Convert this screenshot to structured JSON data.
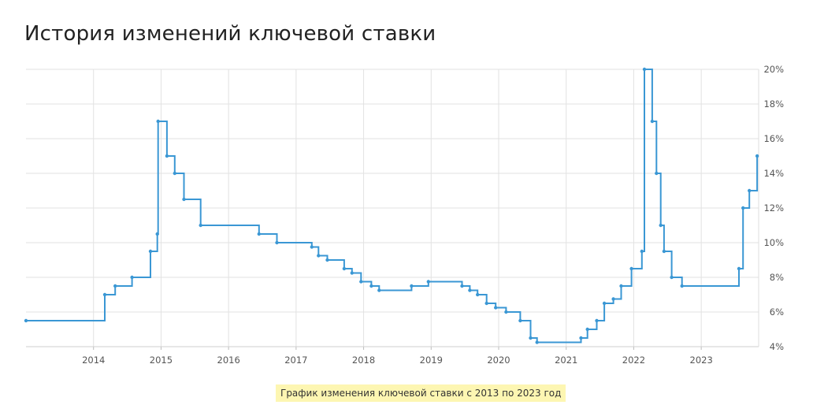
{
  "page": {
    "title": "История изменений ключевой ставки",
    "caption": "График изменения ключевой ставки с 2013 по 2023 год"
  },
  "chart_data": {
    "type": "line",
    "step": true,
    "title": "История изменений ключевой ставки",
    "xlabel": "",
    "ylabel": "",
    "xlim": [
      2013.0,
      2023.85
    ],
    "ylim": [
      4,
      20
    ],
    "x_ticks": [
      "2014",
      "2015",
      "2016",
      "2017",
      "2018",
      "2019",
      "2020",
      "2021",
      "2022",
      "2023"
    ],
    "y_ticks": [
      "4%",
      "6%",
      "8%",
      "10%",
      "12%",
      "14%",
      "16%",
      "18%",
      "20%"
    ],
    "y_axis_side": "right",
    "grid": true,
    "color": "#3a97d4",
    "series": [
      {
        "x": [
          "2013-01-01",
          "2014-03-03",
          "2014-04-28",
          "2014-07-28",
          "2014-11-05",
          "2014-12-12",
          "2014-12-16",
          "2015-02-02",
          "2015-03-16",
          "2015-05-05",
          "2015-08-03",
          "2016-06-14",
          "2016-09-19",
          "2017-03-27",
          "2017-05-02",
          "2017-06-19",
          "2017-09-18",
          "2017-10-30",
          "2017-12-18",
          "2018-02-12",
          "2018-03-26",
          "2018-09-17",
          "2018-12-17",
          "2019-06-17",
          "2019-07-29",
          "2019-09-09",
          "2019-10-28",
          "2019-12-16",
          "2020-02-10",
          "2020-04-27",
          "2020-06-22",
          "2020-07-27",
          "2021-03-22",
          "2021-04-26",
          "2021-06-15",
          "2021-07-26",
          "2021-09-13",
          "2021-10-25",
          "2021-12-20",
          "2022-02-14",
          "2022-02-28",
          "2022-04-11",
          "2022-05-04",
          "2022-05-27",
          "2022-06-14",
          "2022-07-25",
          "2022-09-19",
          "2023-07-24",
          "2023-08-15",
          "2023-09-18",
          "2023-10-30"
        ],
        "values": [
          5.5,
          7.0,
          7.5,
          8.0,
          9.5,
          10.5,
          17.0,
          15.0,
          14.0,
          12.5,
          11.0,
          10.5,
          10.0,
          9.75,
          9.25,
          9.0,
          8.5,
          8.25,
          7.75,
          7.5,
          7.25,
          7.5,
          7.75,
          7.5,
          7.25,
          7.0,
          6.5,
          6.25,
          6.0,
          5.5,
          4.5,
          4.25,
          4.5,
          5.0,
          5.5,
          6.5,
          6.75,
          7.5,
          8.5,
          9.5,
          20.0,
          17.0,
          14.0,
          11.0,
          9.5,
          8.0,
          7.5,
          8.5,
          12.0,
          13.0,
          15.0
        ]
      }
    ]
  }
}
